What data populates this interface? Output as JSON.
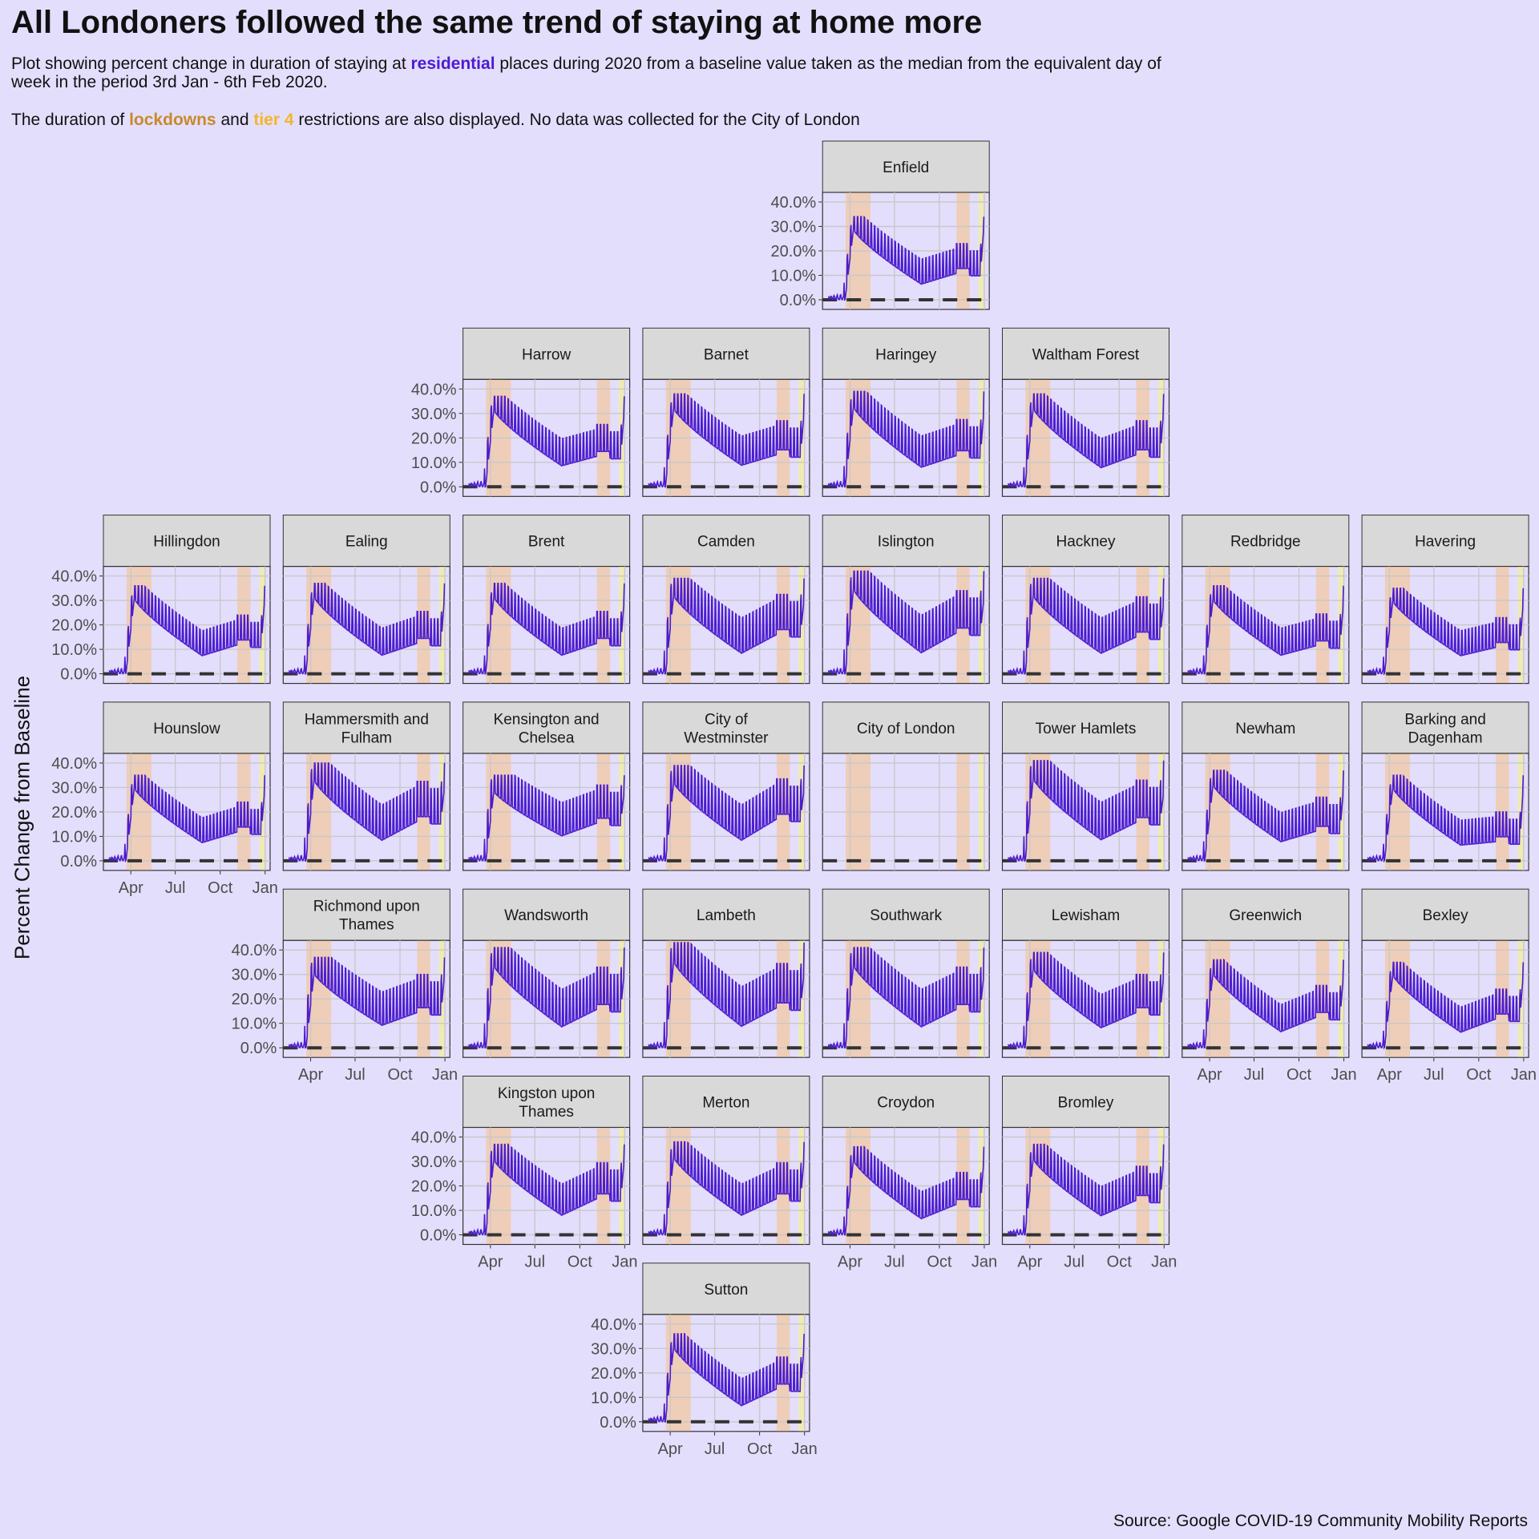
{
  "title": "All Londoners followed the same trend of staying at home more",
  "subtitle": {
    "line1_before": "Plot showing percent change in duration of staying at ",
    "highlight_residential": "residential",
    "line1_after": " places during 2020 from a baseline value taken as the median from the equivalent day of week in the period 3rd Jan - 6th Feb 2020.",
    "line2_before": "The duration of ",
    "highlight_lockdowns": "lockdowns",
    "line2_mid": " and ",
    "highlight_tier4": "tier 4",
    "line2_after": " restrictions are also displayed. No data was collected for the City of London"
  },
  "source": "Source: Google COVID-19 Community Mobility Reports",
  "colors": {
    "background": "#e4defd",
    "line": "#4b1ccf",
    "lockdown": "#f0c9a8",
    "tier4": "#eeecab",
    "strip": "#d9d9d9",
    "grid": "#c8c8c8",
    "baseline": "#333333"
  },
  "chart_data": {
    "type": "line",
    "xlabel": "",
    "ylabel": "Percent Change from Baseline",
    "ylim": [
      0,
      40
    ],
    "y_ticks": [
      "0.0%",
      "10.0%",
      "20.0%",
      "30.0%",
      "40.0%"
    ],
    "x_ticks": [
      "Apr",
      "Jul",
      "Oct",
      "Jan"
    ],
    "x_tick_dates": [
      "2020-04-01",
      "2020-07-01",
      "2020-10-01",
      "2021-01-01"
    ],
    "x_range": [
      "2020-02-15",
      "2021-01-01"
    ],
    "baseline_value": 0,
    "lockdowns": [
      [
        "2020-03-23",
        "2020-05-13"
      ],
      [
        "2020-11-05",
        "2020-12-02"
      ]
    ],
    "tier4": [
      [
        "2020-12-20",
        "2020-12-31"
      ]
    ],
    "series": [
      {
        "name": "Enfield",
        "row": 0,
        "col": 4,
        "peak": 33,
        "trough": 4,
        "nov": 17,
        "dec": 34,
        "weekly": 12
      },
      {
        "name": "Harrow",
        "row": 1,
        "col": 2,
        "peak": 36,
        "trough": 6,
        "nov": 19,
        "dec": 36,
        "weekly": 13
      },
      {
        "name": "Barnet",
        "row": 1,
        "col": 3,
        "peak": 37,
        "trough": 6,
        "nov": 20,
        "dec": 35,
        "weekly": 14
      },
      {
        "name": "Haringey",
        "row": 1,
        "col": 4,
        "peak": 38,
        "trough": 5,
        "nov": 20,
        "dec": 36,
        "weekly": 15
      },
      {
        "name": "Waltham Forest",
        "row": 1,
        "col": 5,
        "peak": 37,
        "trough": 5,
        "nov": 20,
        "dec": 36,
        "weekly": 14
      },
      {
        "name": "Hillingdon",
        "row": 2,
        "col": 0,
        "peak": 35,
        "trough": 5,
        "nov": 18,
        "dec": 35,
        "weekly": 12
      },
      {
        "name": "Ealing",
        "row": 2,
        "col": 1,
        "peak": 36,
        "trough": 5,
        "nov": 19,
        "dec": 36,
        "weekly": 13
      },
      {
        "name": "Brent",
        "row": 2,
        "col": 2,
        "peak": 36,
        "trough": 5,
        "nov": 19,
        "dec": 35,
        "weekly": 13
      },
      {
        "name": "Camden",
        "row": 2,
        "col": 3,
        "peak": 38,
        "trough": 5,
        "nov": 24,
        "dec": 36,
        "weekly": 17
      },
      {
        "name": "Islington",
        "row": 2,
        "col": 4,
        "peak": 41,
        "trough": 5,
        "nov": 25,
        "dec": 37,
        "weekly": 18
      },
      {
        "name": "Hackney",
        "row": 2,
        "col": 5,
        "peak": 38,
        "trough": 5,
        "nov": 23,
        "dec": 35,
        "weekly": 17
      },
      {
        "name": "Redbridge",
        "row": 2,
        "col": 6,
        "peak": 35,
        "trough": 5,
        "nov": 18,
        "dec": 33,
        "weekly": 13
      },
      {
        "name": "Havering",
        "row": 2,
        "col": 7,
        "peak": 34,
        "trough": 5,
        "nov": 17,
        "dec": 33,
        "weekly": 12
      },
      {
        "name": "Hounslow",
        "row": 3,
        "col": 0,
        "peak": 34,
        "trough": 5,
        "nov": 18,
        "dec": 33,
        "weekly": 12
      },
      {
        "name": "Hammersmith and Fulham",
        "row": 3,
        "col": 1,
        "peak": 39,
        "trough": 5,
        "nov": 24,
        "dec": 36,
        "weekly": 17
      },
      {
        "name": "Kensington and Chelsea",
        "row": 3,
        "col": 2,
        "peak": 34,
        "trough": 7,
        "nov": 23,
        "dec": 34,
        "weekly": 16
      },
      {
        "name": "City of Westminster",
        "row": 3,
        "col": 3,
        "peak": 38,
        "trough": 5,
        "nov": 25,
        "dec": 35,
        "weekly": 17
      },
      {
        "name": "City of London",
        "row": 3,
        "col": 4,
        "nodata": true
      },
      {
        "name": "Tower Hamlets",
        "row": 3,
        "col": 5,
        "peak": 40,
        "trough": 5,
        "nov": 24,
        "dec": 34,
        "weekly": 18
      },
      {
        "name": "Newham",
        "row": 3,
        "col": 6,
        "peak": 36,
        "trough": 5,
        "nov": 19,
        "dec": 34,
        "weekly": 14
      },
      {
        "name": "Barking and Dagenham",
        "row": 3,
        "col": 7,
        "peak": 34,
        "trough": 4,
        "nov": 14,
        "dec": 34,
        "weekly": 12
      },
      {
        "name": "Richmond upon Thames",
        "row": 4,
        "col": 1,
        "peak": 36,
        "trough": 6,
        "nov": 22,
        "dec": 35,
        "weekly": 16
      },
      {
        "name": "Wandsworth",
        "row": 4,
        "col": 2,
        "peak": 40,
        "trough": 5,
        "nov": 24,
        "dec": 37,
        "weekly": 18
      },
      {
        "name": "Lambeth",
        "row": 4,
        "col": 3,
        "peak": 42,
        "trough": 5,
        "nov": 25,
        "dec": 37,
        "weekly": 19
      },
      {
        "name": "Southwark",
        "row": 4,
        "col": 4,
        "peak": 40,
        "trough": 5,
        "nov": 24,
        "dec": 36,
        "weekly": 18
      },
      {
        "name": "Lewisham",
        "row": 4,
        "col": 5,
        "peak": 38,
        "trough": 5,
        "nov": 22,
        "dec": 35,
        "weekly": 16
      },
      {
        "name": "Greenwich",
        "row": 4,
        "col": 6,
        "peak": 35,
        "trough": 4,
        "nov": 19,
        "dec": 34,
        "weekly": 13
      },
      {
        "name": "Bexley",
        "row": 4,
        "col": 7,
        "peak": 34,
        "trough": 4,
        "nov": 18,
        "dec": 34,
        "weekly": 12
      },
      {
        "name": "Kingston upon Thames",
        "row": 5,
        "col": 2,
        "peak": 36,
        "trough": 5,
        "nov": 22,
        "dec": 36,
        "weekly": 15
      },
      {
        "name": "Merton",
        "row": 5,
        "col": 3,
        "peak": 37,
        "trough": 5,
        "nov": 22,
        "dec": 36,
        "weekly": 15
      },
      {
        "name": "Croydon",
        "row": 5,
        "col": 4,
        "peak": 35,
        "trough": 4,
        "nov": 19,
        "dec": 35,
        "weekly": 13
      },
      {
        "name": "Bromley",
        "row": 5,
        "col": 5,
        "peak": 36,
        "trough": 5,
        "nov": 21,
        "dec": 35,
        "weekly": 14
      },
      {
        "name": "Sutton",
        "row": 6,
        "col": 3,
        "peak": 35,
        "trough": 4,
        "nov": 20,
        "dec": 35,
        "weekly": 13
      }
    ]
  }
}
